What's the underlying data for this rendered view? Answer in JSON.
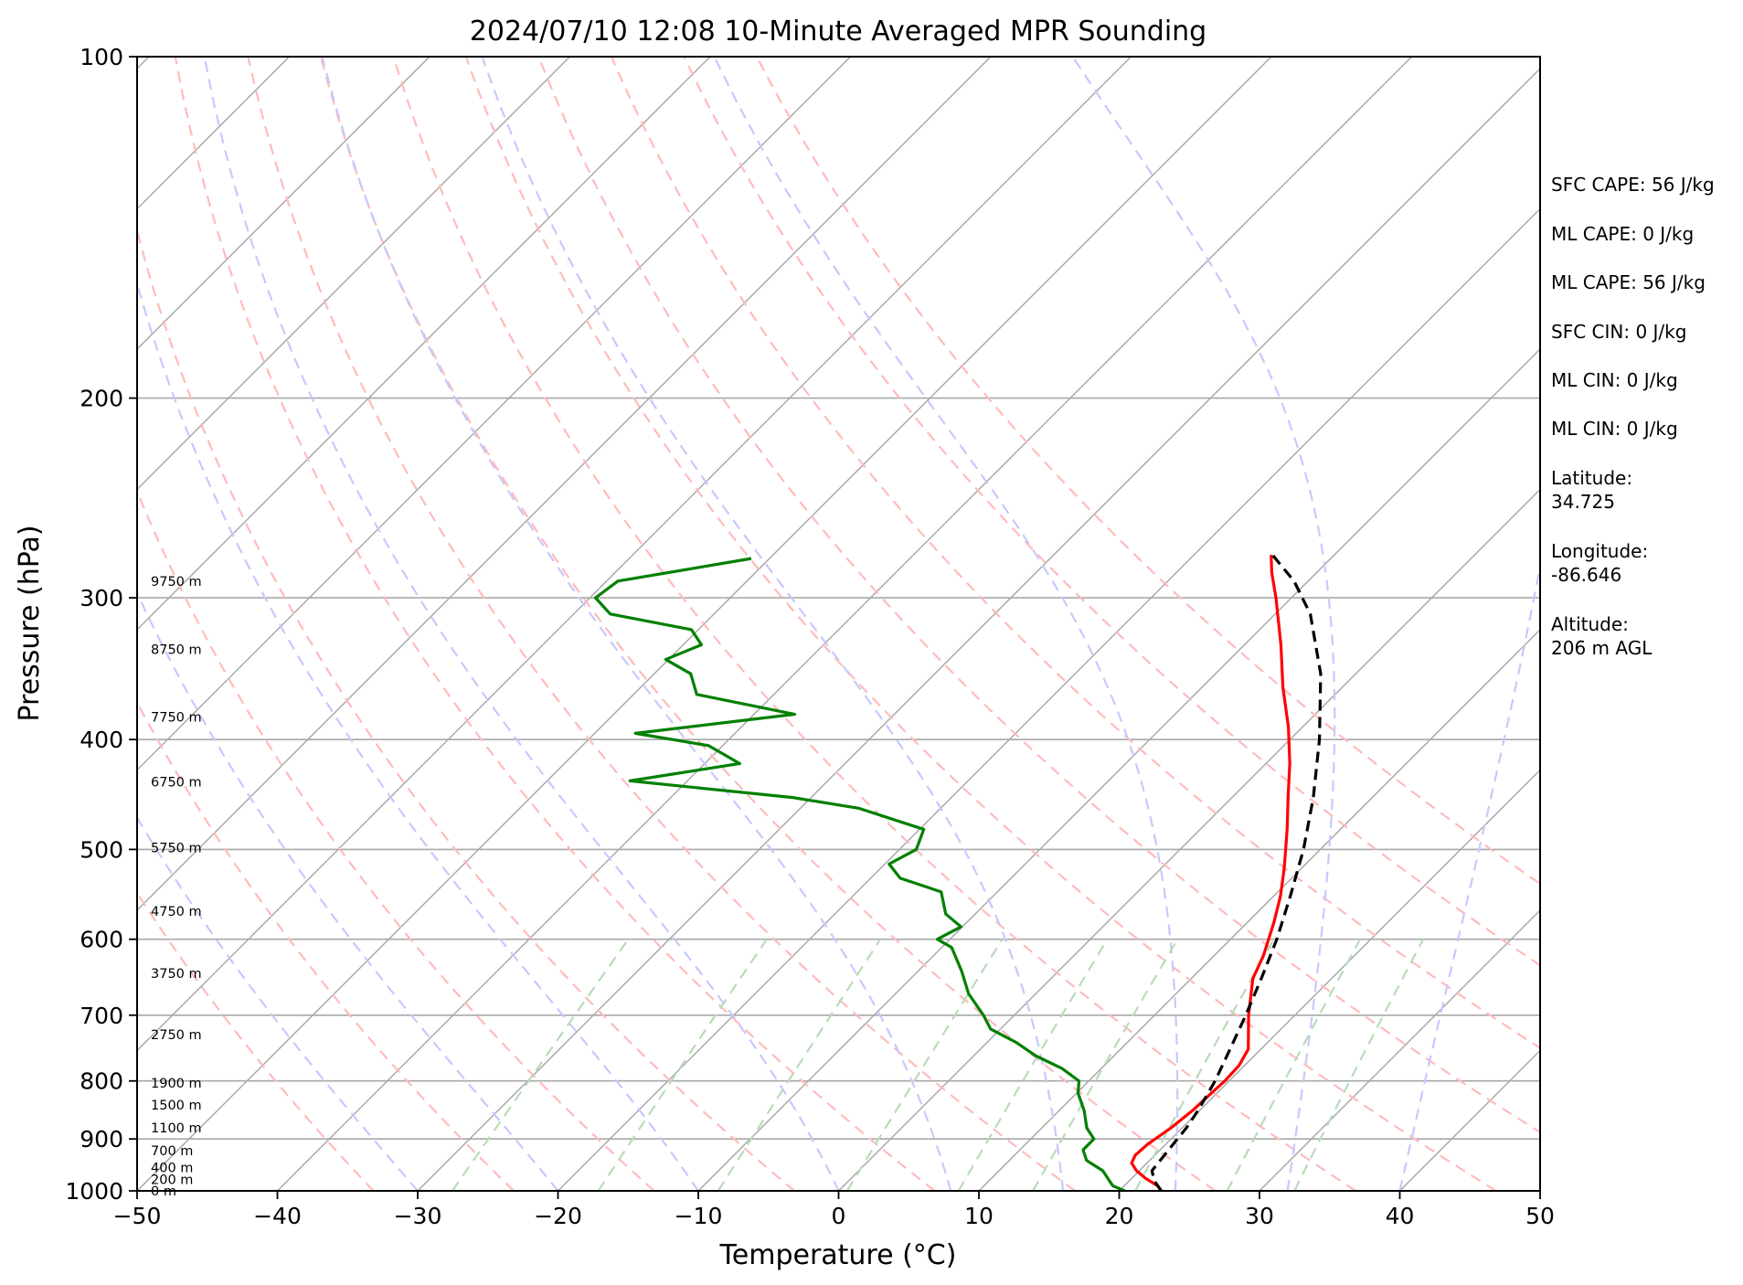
{
  "title": "2024/07/10 12:08 10-Minute Averaged MPR Sounding",
  "side_panel": {
    "stats": [
      "SFC CAPE: 56 J/kg",
      "ML CAPE: 0 J/kg",
      "ML CAPE: 56 J/kg",
      "SFC CIN: 0 J/kg",
      "ML CIN: 0 J/kg",
      "ML CIN: 0 J/kg"
    ],
    "location": [
      {
        "label": "Latitude:",
        "value": "34.725"
      },
      {
        "label": "Longitude:",
        "value": "-86.646"
      },
      {
        "label": "Altitude:",
        "value": "206 m AGL"
      }
    ]
  },
  "chart_data": {
    "type": "line",
    "diagram": "skew-t log-p",
    "title": "2024/07/10 12:08 10-Minute Averaged MPR Sounding",
    "xlabel": "Temperature (°C)",
    "ylabel": "Pressure (hPa)",
    "xlim": [
      -50,
      50
    ],
    "ylim": [
      1000,
      100
    ],
    "y_scale": "log",
    "x_ticks": [
      -50,
      -40,
      -30,
      -20,
      -10,
      0,
      10,
      20,
      30,
      40,
      50
    ],
    "x_tick_labels": [
      "−50",
      "−40",
      "−30",
      "−20",
      "−10",
      "0",
      "10",
      "20",
      "30",
      "40",
      "50"
    ],
    "y_ticks": [
      100,
      200,
      300,
      400,
      500,
      600,
      700,
      800,
      900,
      1000
    ],
    "y_tick_labels": [
      "100",
      "200",
      "300",
      "400",
      "500",
      "600",
      "700",
      "800",
      "900",
      "1000"
    ],
    "grid": true,
    "colors": {
      "temperature": "#ff0000",
      "dewpoint": "#008000",
      "parcel": "#000000",
      "isotherm": "#a8a8a8",
      "isobar": "#a8a8a8",
      "dry_adiabat": "#ffbbbb",
      "moist_adiabat": "#c8c8ff",
      "mixing_ratio": "#b8dcb8"
    },
    "series": [
      {
        "key": "temperature",
        "style": "solid",
        "points": [
          {
            "p": 1000,
            "t": 23.0
          },
          {
            "p": 990,
            "t": 22.4
          },
          {
            "p": 975,
            "t": 21.0
          },
          {
            "p": 960,
            "t": 19.8
          },
          {
            "p": 945,
            "t": 18.9
          },
          {
            "p": 930,
            "t": 18.6
          },
          {
            "p": 910,
            "t": 18.7
          },
          {
            "p": 880,
            "t": 19.2
          },
          {
            "p": 850,
            "t": 19.5
          },
          {
            "p": 820,
            "t": 19.6
          },
          {
            "p": 800,
            "t": 19.7
          },
          {
            "p": 775,
            "t": 19.6
          },
          {
            "p": 750,
            "t": 19.1
          },
          {
            "p": 700,
            "t": 16.7
          },
          {
            "p": 650,
            "t": 14.4
          },
          {
            "p": 620,
            "t": 13.5
          },
          {
            "p": 580,
            "t": 11.9
          },
          {
            "p": 550,
            "t": 10.5
          },
          {
            "p": 520,
            "t": 8.8
          },
          {
            "p": 480,
            "t": 6.2
          },
          {
            "p": 450,
            "t": 4.0
          },
          {
            "p": 420,
            "t": 1.7
          },
          {
            "p": 390,
            "t": -1.0
          },
          {
            "p": 360,
            "t": -4.2
          },
          {
            "p": 330,
            "t": -7.4
          },
          {
            "p": 300,
            "t": -11.1
          },
          {
            "p": 285,
            "t": -13.2
          },
          {
            "p": 275,
            "t": -14.5
          }
        ]
      },
      {
        "key": "dewpoint",
        "style": "solid",
        "points": [
          {
            "p": 1000,
            "t": 20.4
          },
          {
            "p": 990,
            "t": 19.2
          },
          {
            "p": 980,
            "t": 18.6
          },
          {
            "p": 960,
            "t": 17.4
          },
          {
            "p": 940,
            "t": 15.5
          },
          {
            "p": 920,
            "t": 14.5
          },
          {
            "p": 900,
            "t": 14.5
          },
          {
            "p": 880,
            "t": 13.2
          },
          {
            "p": 850,
            "t": 11.8
          },
          {
            "p": 820,
            "t": 10.1
          },
          {
            "p": 800,
            "t": 9.3
          },
          {
            "p": 780,
            "t": 7.2
          },
          {
            "p": 760,
            "t": 4.4
          },
          {
            "p": 740,
            "t": 2.1
          },
          {
            "p": 720,
            "t": -0.7
          },
          {
            "p": 700,
            "t": -2.2
          },
          {
            "p": 670,
            "t": -4.8
          },
          {
            "p": 640,
            "t": -6.9
          },
          {
            "p": 610,
            "t": -9.3
          },
          {
            "p": 600,
            "t": -10.9
          },
          {
            "p": 585,
            "t": -10.1
          },
          {
            "p": 570,
            "t": -12.1
          },
          {
            "p": 545,
            "t": -14.0
          },
          {
            "p": 530,
            "t": -17.9
          },
          {
            "p": 515,
            "t": -19.7
          },
          {
            "p": 500,
            "t": -18.8
          },
          {
            "p": 480,
            "t": -19.7
          },
          {
            "p": 460,
            "t": -25.8
          },
          {
            "p": 450,
            "t": -31.3
          },
          {
            "p": 435,
            "t": -44.1
          },
          {
            "p": 420,
            "t": -37.5
          },
          {
            "p": 405,
            "t": -41.0
          },
          {
            "p": 395,
            "t": -47.1
          },
          {
            "p": 380,
            "t": -37.1
          },
          {
            "p": 365,
            "t": -45.5
          },
          {
            "p": 350,
            "t": -47.4
          },
          {
            "p": 340,
            "t": -50.2
          },
          {
            "p": 330,
            "t": -48.7
          },
          {
            "p": 320,
            "t": -50.5
          },
          {
            "p": 310,
            "t": -57.4
          },
          {
            "p": 300,
            "t": -59.6
          },
          {
            "p": 290,
            "t": -59.2
          },
          {
            "p": 277,
            "t": -51.3
          }
        ]
      },
      {
        "key": "parcel",
        "style": "dashed",
        "points": [
          {
            "p": 1000,
            "t": 23.0
          },
          {
            "p": 980,
            "t": 21.8
          },
          {
            "p": 960,
            "t": 20.9
          },
          {
            "p": 920,
            "t": 20.6
          },
          {
            "p": 880,
            "t": 20.3
          },
          {
            "p": 850,
            "t": 19.9
          },
          {
            "p": 800,
            "t": 19.0
          },
          {
            "p": 750,
            "t": 17.8
          },
          {
            "p": 700,
            "t": 16.5
          },
          {
            "p": 650,
            "t": 15.0
          },
          {
            "p": 600,
            "t": 13.3
          },
          {
            "p": 550,
            "t": 11.2
          },
          {
            "p": 500,
            "t": 8.8
          },
          {
            "p": 450,
            "t": 5.8
          },
          {
            "p": 400,
            "t": 2.1
          },
          {
            "p": 350,
            "t": -2.5
          },
          {
            "p": 310,
            "t": -7.5
          },
          {
            "p": 290,
            "t": -11.0
          },
          {
            "p": 275,
            "t": -14.4
          }
        ]
      }
    ],
    "height_labels": [
      {
        "text": "0 m",
        "p": 1000
      },
      {
        "text": "200 m",
        "p": 977
      },
      {
        "text": "400 m",
        "p": 954
      },
      {
        "text": "700 m",
        "p": 922
      },
      {
        "text": "1100 m",
        "p": 880
      },
      {
        "text": "1500 m",
        "p": 840
      },
      {
        "text": "1900 m",
        "p": 803
      },
      {
        "text": "2750 m",
        "p": 728
      },
      {
        "text": "3750 m",
        "p": 643
      },
      {
        "text": "4750 m",
        "p": 567
      },
      {
        "text": "5750 m",
        "p": 498
      },
      {
        "text": "6750 m",
        "p": 436
      },
      {
        "text": "7750 m",
        "p": 382
      },
      {
        "text": "8750 m",
        "p": 333
      },
      {
        "text": "9750 m",
        "p": 290
      }
    ],
    "isotherms": [
      -150,
      -140,
      -130,
      -120,
      -110,
      -100,
      -90,
      -80,
      -70,
      -60,
      -50,
      -40,
      -30,
      -20,
      -10,
      0,
      10,
      20,
      30,
      40,
      50
    ],
    "dry_adiabats_theta_K": [
      240,
      250,
      260,
      270,
      280,
      290,
      300,
      310,
      320,
      330,
      340,
      350,
      360
    ],
    "moist_adiabats_surface_C": [
      -30,
      -20,
      -10,
      0,
      8,
      16,
      24,
      32,
      40
    ],
    "mixing_ratio_lines_gkg": [
      0.4,
      1,
      2,
      4,
      7,
      10,
      16,
      24,
      32
    ]
  }
}
